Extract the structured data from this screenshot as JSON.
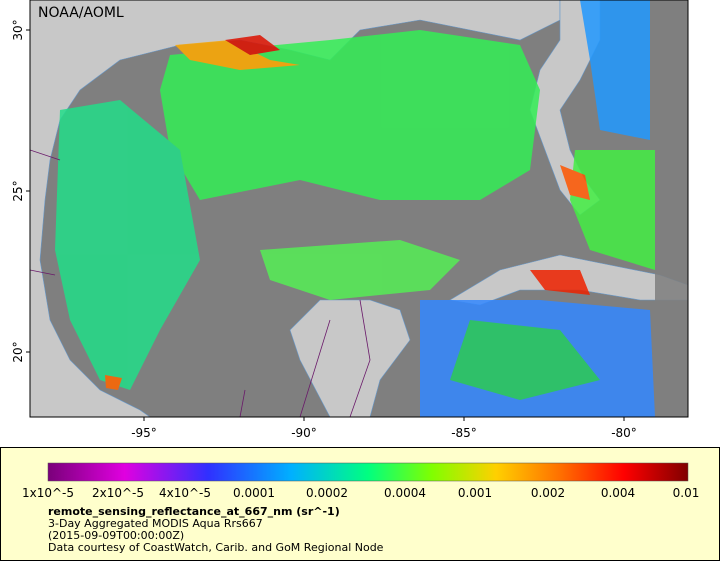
{
  "map": {
    "credit": "NOAA/AOML",
    "x_axis": {
      "ticks": [
        "-95°",
        "-90°",
        "-85°",
        "-80°"
      ]
    },
    "y_axis": {
      "ticks": [
        "20°",
        "25°",
        "30°"
      ]
    }
  },
  "legend": {
    "labels": [
      "1x10^-5",
      "2x10^-5",
      "4x10^-5",
      "0.0001",
      "0.0002",
      "0.0004",
      "0.001",
      "0.002",
      "0.004",
      "0.01"
    ],
    "title": "remote_sensing_reflectance_at_667_nm (sr^-1)",
    "lines": [
      "3-Day Aggregated MODIS Aqua Rrs667",
      "(2015-09-09T00:00:00Z)",
      "Data courtesy of CoastWatch, Carib. and GoM Regional Node"
    ]
  }
}
